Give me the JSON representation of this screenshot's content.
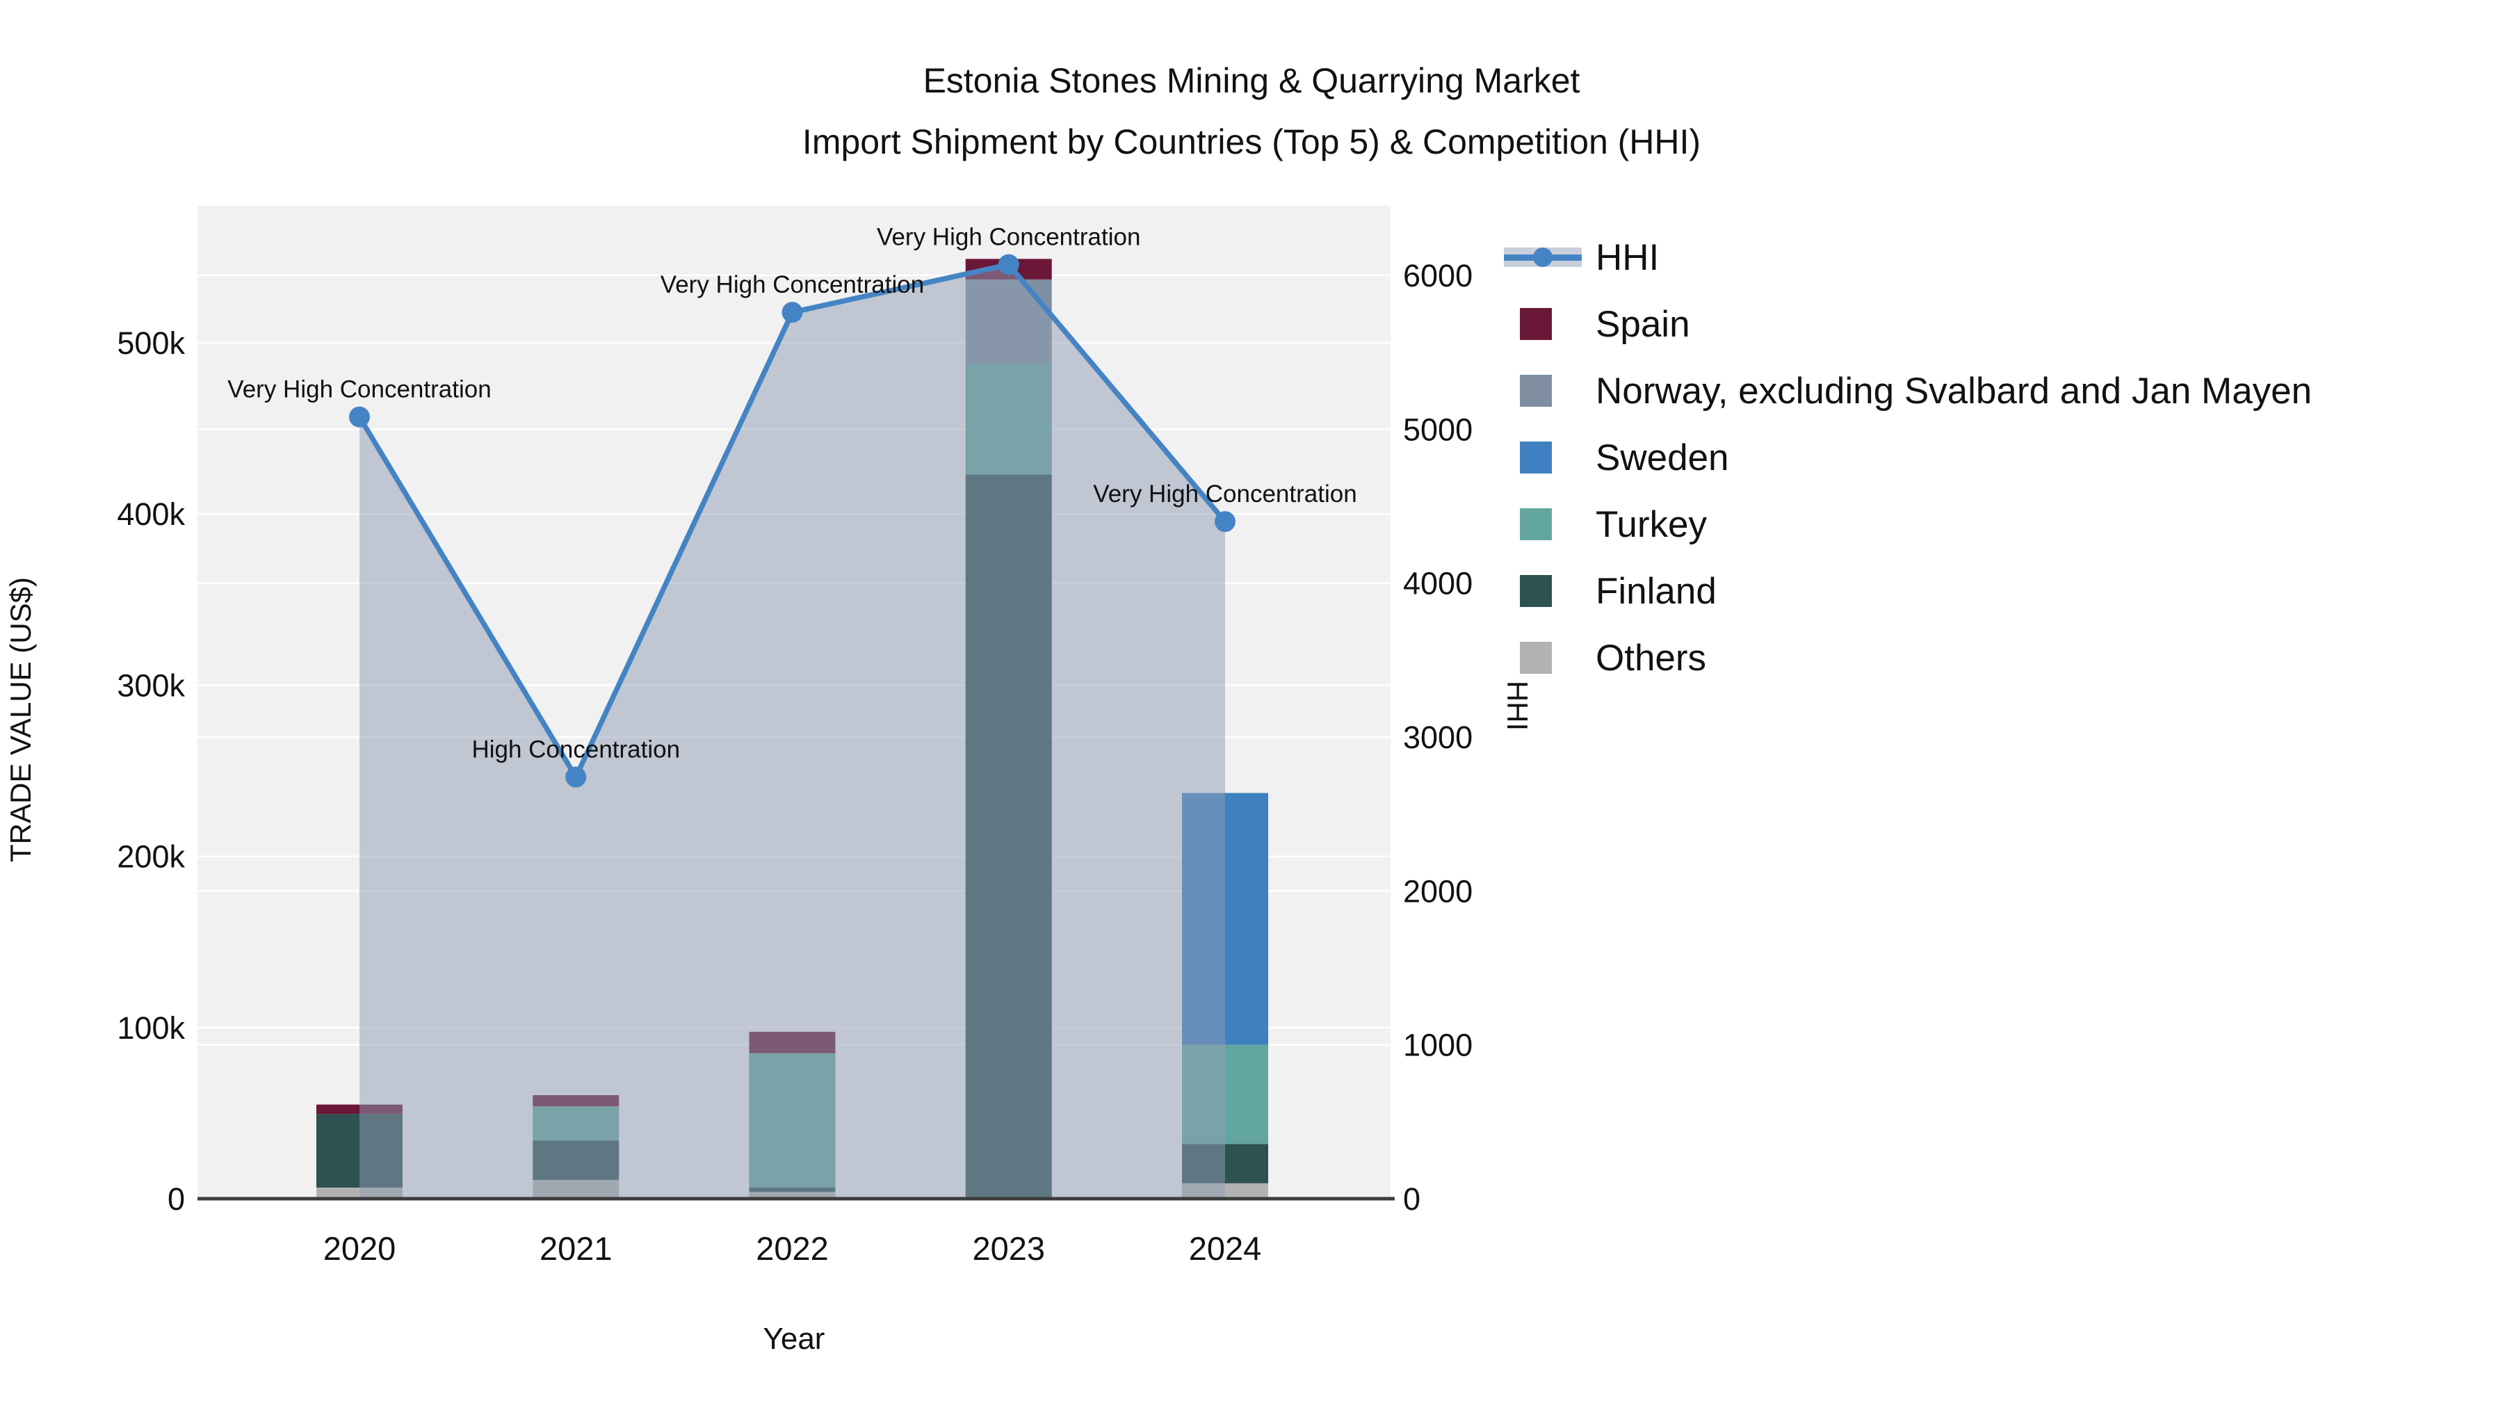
{
  "figure": {
    "title_line1": "Estonia Stones Mining & Quarrying Market",
    "title_line2": "Import Shipment by Countries (Top 5) & Competition (HHI)"
  },
  "legend": {
    "items": [
      {
        "label": "HHI",
        "type": "line",
        "color": "#4584c4",
        "band": "#c9cfda"
      },
      {
        "label": "Spain",
        "type": "swatch",
        "color": "#6b1737"
      },
      {
        "label": "Norway, excluding Svalbard and Jan Mayen",
        "type": "swatch",
        "color": "#7f8fa1"
      },
      {
        "label": "Sweden",
        "type": "swatch",
        "color": "#3f80c1"
      },
      {
        "label": "Turkey",
        "type": "swatch",
        "color": "#63a6a0"
      },
      {
        "label": "Finland",
        "type": "swatch",
        "color": "#2e5152"
      },
      {
        "label": "Others",
        "type": "swatch",
        "color": "#b2b2b2"
      }
    ]
  },
  "chart_data": {
    "type": "combo-stacked-bar-line",
    "title": "Estonia Stones Mining & Quarrying Market Import Shipment by Countries (Top 5) & Competition (HHI)",
    "xlabel": "Year",
    "categories": [
      "2020",
      "2021",
      "2022",
      "2023",
      "2024"
    ],
    "left_axis": {
      "label": "TRADE VALUE (US$)",
      "ticks": [
        {
          "label": "0",
          "value": 0
        },
        {
          "label": "100k",
          "value": 100000
        },
        {
          "label": "200k",
          "value": 200000
        },
        {
          "label": "300k",
          "value": 300000
        },
        {
          "label": "400k",
          "value": 400000
        },
        {
          "label": "500k",
          "value": 500000
        }
      ],
      "max": 580000
    },
    "right_axis": {
      "label": "HHI",
      "ticks": [
        {
          "label": "0",
          "value": 0
        },
        {
          "label": "1000",
          "value": 1000
        },
        {
          "label": "2000",
          "value": 2000
        },
        {
          "label": "3000",
          "value": 3000
        },
        {
          "label": "4000",
          "value": 4000
        },
        {
          "label": "5000",
          "value": 5000
        },
        {
          "label": "6000",
          "value": 6000
        }
      ],
      "max": 6450
    },
    "bar_series": [
      {
        "name": "Spain",
        "color": "#6b1737",
        "values": [
          5500,
          6500,
          12500,
          12000,
          0
        ]
      },
      {
        "name": "Norway, excluding Svalbard and Jan Mayen",
        "color": "#7f8fa1",
        "values": [
          0,
          0,
          0,
          49000,
          0
        ]
      },
      {
        "name": "Sweden",
        "color": "#3f80c1",
        "values": [
          0,
          0,
          0,
          0,
          147000
        ]
      },
      {
        "name": "Turkey",
        "color": "#63a6a0",
        "values": [
          0,
          20000,
          78500,
          65000,
          58000
        ]
      },
      {
        "name": "Finland",
        "color": "#2e5152",
        "values": [
          43000,
          23000,
          2500,
          423000,
          23000
        ]
      },
      {
        "name": "Others",
        "color": "#b2b2b2",
        "values": [
          6500,
          11000,
          4000,
          0,
          9000
        ]
      }
    ],
    "stack_order_bottom_to_top": [
      "Others",
      "Finland",
      "Turkey",
      "Sweden",
      "Norway, excluding Svalbard and Jan Mayen",
      "Spain"
    ],
    "line_series": {
      "name": "HHI",
      "color": "#4584c4",
      "area_fill": "rgba(144,157,178,0.5)"
    },
    "points": [
      {
        "category": "2020",
        "hhi": 5080,
        "annotation": "Very High Concentration"
      },
      {
        "category": "2021",
        "hhi": 2740,
        "annotation": "High Concentration"
      },
      {
        "category": "2022",
        "hhi": 5760,
        "annotation": "Very High Concentration"
      },
      {
        "category": "2023",
        "hhi": 6070,
        "annotation": "Very High Concentration"
      },
      {
        "category": "2024",
        "hhi": 4400,
        "annotation": "Very High Concentration"
      }
    ],
    "style": {
      "plot_bg": "#f1f1f2",
      "grid_color": "#ffffff",
      "axis_line_color": "#3c3c3c",
      "text_color": "#111111"
    }
  }
}
